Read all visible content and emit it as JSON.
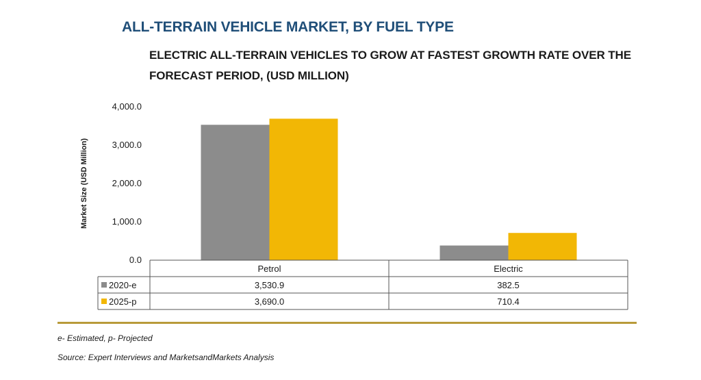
{
  "header": {
    "title": "ALL-TERRAIN VEHICLE MARKET, BY FUEL TYPE",
    "subtitle": "ELECTRIC ALL-TERRAIN VEHICLES TO GROW AT FASTEST GROWTH RATE OVER THE FORECAST PERIOD, (USD MILLION)"
  },
  "chart_data": {
    "type": "bar",
    "categories": [
      "Petrol",
      "Electric"
    ],
    "series": [
      {
        "name": "2020-e",
        "values": [
          3530.9,
          382.5
        ],
        "labels": [
          "3,530.9",
          "382.5"
        ],
        "color": "#8c8c8c"
      },
      {
        "name": "2025-p",
        "values": [
          3690.0,
          710.4
        ],
        "labels": [
          "3,690.0",
          "710.4"
        ],
        "color": "#f2b705"
      }
    ],
    "ylabel": "Market Size (USD Million)",
    "ylim": [
      0,
      4000
    ],
    "yticks": [
      0,
      1000,
      2000,
      3000,
      4000
    ],
    "ytick_labels": [
      "0.0",
      "1,000.0",
      "2,000.0",
      "3,000.0",
      "4,000.0"
    ],
    "grid": false,
    "legend": "data table below chart"
  },
  "footer": {
    "note": "e- Estimated, p- Projected",
    "source": "Source: Expert Interviews and MarketsandMarkets Analysis"
  }
}
